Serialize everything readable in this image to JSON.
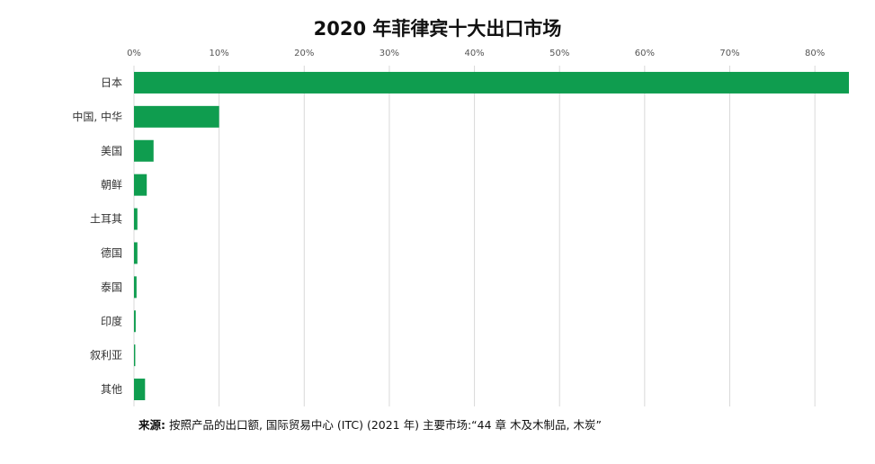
{
  "chart_data": {
    "type": "bar",
    "orientation": "horizontal",
    "title": "2020 年菲律宾十大出口市场",
    "categories": [
      "日本",
      "中国, 中华",
      "美国",
      "朝鲜",
      "土耳其",
      "德国",
      "泰国",
      "印度",
      "叙利亚",
      "其他"
    ],
    "values": [
      84,
      10,
      2.3,
      1.5,
      0.4,
      0.4,
      0.3,
      0.2,
      0.15,
      1.3
    ],
    "x_ticks": [
      "0%",
      "10%",
      "20%",
      "30%",
      "40%",
      "50%",
      "60%",
      "70%",
      "80%"
    ],
    "xlim": [
      0,
      84
    ],
    "grid": true,
    "legend": "none",
    "bar_color": "#0f9d4f",
    "grid_color": "#d9d9d9"
  },
  "source": {
    "label": "来源:",
    "text": "按照产品的出口额, 国际贸易中心 (ITC) (2021 年) 主要市场:“44 章 木及木制品, 木炭”"
  }
}
